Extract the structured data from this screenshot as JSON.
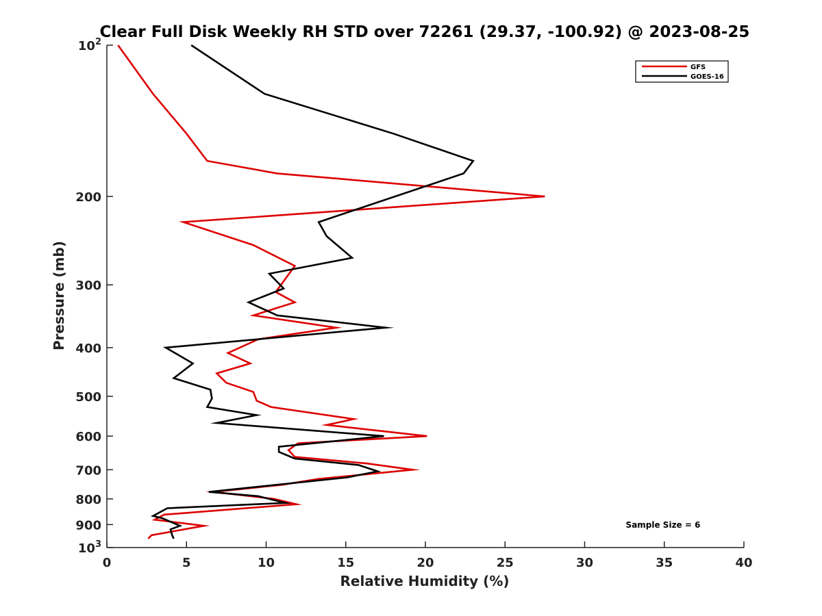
{
  "chart_data": {
    "type": "line",
    "title": "Clear Full Disk Weekly RH STD over 72261 (29.37, -100.92) @ 2023-08-25",
    "xlabel": "Relative Humidity (%)",
    "ylabel": "Pressure (mb)",
    "xlim": [
      0,
      40
    ],
    "ylim": [
      1000,
      100
    ],
    "y_scale": "log-reversed",
    "x_ticks": [
      0,
      5,
      10,
      15,
      20,
      25,
      30,
      35,
      40
    ],
    "y_ticks": [
      {
        "value": 100,
        "label": "10",
        "sup": "2"
      },
      {
        "value": 200,
        "label": "200"
      },
      {
        "value": 300,
        "label": "300"
      },
      {
        "value": 400,
        "label": "400"
      },
      {
        "value": 500,
        "label": "500"
      },
      {
        "value": 600,
        "label": "600"
      },
      {
        "value": 700,
        "label": "700"
      },
      {
        "value": 800,
        "label": "800"
      },
      {
        "value": 900,
        "label": "900"
      },
      {
        "value": 1000,
        "label": "10",
        "sup": "3"
      }
    ],
    "legend_position": "top-right",
    "grid": false,
    "annotation": "Sample Size = 6",
    "series": [
      {
        "name": "GFS",
        "color": "#dd0000",
        "points": [
          {
            "x": 0.7,
            "y": 100
          },
          {
            "x": 2.9,
            "y": 125
          },
          {
            "x": 5.0,
            "y": 150
          },
          {
            "x": 6.3,
            "y": 170
          },
          {
            "x": 10.7,
            "y": 180
          },
          {
            "x": 27.5,
            "y": 200
          },
          {
            "x": 4.8,
            "y": 225
          },
          {
            "x": 9.2,
            "y": 250
          },
          {
            "x": 11.8,
            "y": 275
          },
          {
            "x": 10.6,
            "y": 310
          },
          {
            "x": 11.8,
            "y": 325
          },
          {
            "x": 9.2,
            "y": 345
          },
          {
            "x": 14.4,
            "y": 365
          },
          {
            "x": 9.5,
            "y": 385
          },
          {
            "x": 7.6,
            "y": 410
          },
          {
            "x": 9.0,
            "y": 430
          },
          {
            "x": 6.9,
            "y": 450
          },
          {
            "x": 7.5,
            "y": 470
          },
          {
            "x": 9.2,
            "y": 490
          },
          {
            "x": 9.4,
            "y": 510
          },
          {
            "x": 10.3,
            "y": 525
          },
          {
            "x": 15.5,
            "y": 555
          },
          {
            "x": 13.8,
            "y": 570
          },
          {
            "x": 20.1,
            "y": 600
          },
          {
            "x": 12.0,
            "y": 620
          },
          {
            "x": 11.4,
            "y": 640
          },
          {
            "x": 11.8,
            "y": 660
          },
          {
            "x": 16.3,
            "y": 680
          },
          {
            "x": 19.2,
            "y": 700
          },
          {
            "x": 13.3,
            "y": 730
          },
          {
            "x": 11.0,
            "y": 750
          },
          {
            "x": 6.7,
            "y": 775
          },
          {
            "x": 10.5,
            "y": 800
          },
          {
            "x": 11.9,
            "y": 820
          },
          {
            "x": 3.6,
            "y": 860
          },
          {
            "x": 3.0,
            "y": 880
          },
          {
            "x": 6.1,
            "y": 905
          },
          {
            "x": 2.8,
            "y": 945
          },
          {
            "x": 2.6,
            "y": 960
          }
        ]
      },
      {
        "name": "GOES-16",
        "color": "#000000",
        "points": [
          {
            "x": 5.3,
            "y": 100
          },
          {
            "x": 9.9,
            "y": 125
          },
          {
            "x": 18.0,
            "y": 150
          },
          {
            "x": 23.0,
            "y": 170
          },
          {
            "x": 22.4,
            "y": 180
          },
          {
            "x": 18.1,
            "y": 200
          },
          {
            "x": 13.3,
            "y": 225
          },
          {
            "x": 13.8,
            "y": 240
          },
          {
            "x": 15.4,
            "y": 265
          },
          {
            "x": 10.2,
            "y": 285
          },
          {
            "x": 11.1,
            "y": 305
          },
          {
            "x": 8.9,
            "y": 325
          },
          {
            "x": 10.7,
            "y": 345
          },
          {
            "x": 17.5,
            "y": 365
          },
          {
            "x": 3.7,
            "y": 400
          },
          {
            "x": 5.4,
            "y": 430
          },
          {
            "x": 4.2,
            "y": 460
          },
          {
            "x": 6.5,
            "y": 485
          },
          {
            "x": 6.6,
            "y": 505
          },
          {
            "x": 6.3,
            "y": 525
          },
          {
            "x": 9.4,
            "y": 545
          },
          {
            "x": 6.9,
            "y": 565
          },
          {
            "x": 17.4,
            "y": 600
          },
          {
            "x": 10.8,
            "y": 630
          },
          {
            "x": 10.8,
            "y": 645
          },
          {
            "x": 11.8,
            "y": 665
          },
          {
            "x": 15.8,
            "y": 685
          },
          {
            "x": 17.0,
            "y": 705
          },
          {
            "x": 15.1,
            "y": 725
          },
          {
            "x": 6.4,
            "y": 775
          },
          {
            "x": 9.5,
            "y": 790
          },
          {
            "x": 11.2,
            "y": 815
          },
          {
            "x": 3.8,
            "y": 835
          },
          {
            "x": 2.9,
            "y": 865
          },
          {
            "x": 3.5,
            "y": 875
          },
          {
            "x": 4.6,
            "y": 905
          },
          {
            "x": 4.0,
            "y": 920
          },
          {
            "x": 4.1,
            "y": 945
          },
          {
            "x": 4.2,
            "y": 960
          }
        ]
      }
    ]
  }
}
